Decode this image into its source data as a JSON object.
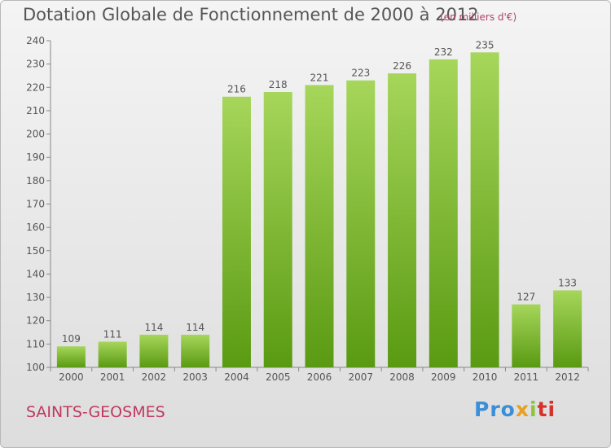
{
  "title": "Dotation Globale de Fonctionnement de 2000 à 2012",
  "unit": "(en milliers d'€)",
  "commune": "SAINTS-GEOSMES",
  "logo": {
    "p1": "Pro",
    "p2": "x",
    "p3": "i",
    "p4": "ti"
  },
  "colors": {
    "bar_top": "#a6d65a",
    "bar_bottom": "#5a9a12",
    "text": "#555555",
    "accent": "#c0385f"
  },
  "chart_data": {
    "type": "bar",
    "title": "Dotation Globale de Fonctionnement de 2000 à 2012",
    "xlabel": "",
    "ylabel": "",
    "categories": [
      "2000",
      "2001",
      "2002",
      "2003",
      "2004",
      "2005",
      "2006",
      "2007",
      "2008",
      "2009",
      "2010",
      "2011",
      "2012"
    ],
    "values": [
      109,
      111,
      114,
      114,
      216,
      218,
      221,
      223,
      226,
      232,
      235,
      127,
      133
    ],
    "ylim": [
      100,
      240
    ],
    "yticks": [
      100,
      110,
      120,
      130,
      140,
      150,
      160,
      170,
      180,
      190,
      200,
      210,
      220,
      230,
      240
    ],
    "grid": false,
    "legend": "none"
  }
}
